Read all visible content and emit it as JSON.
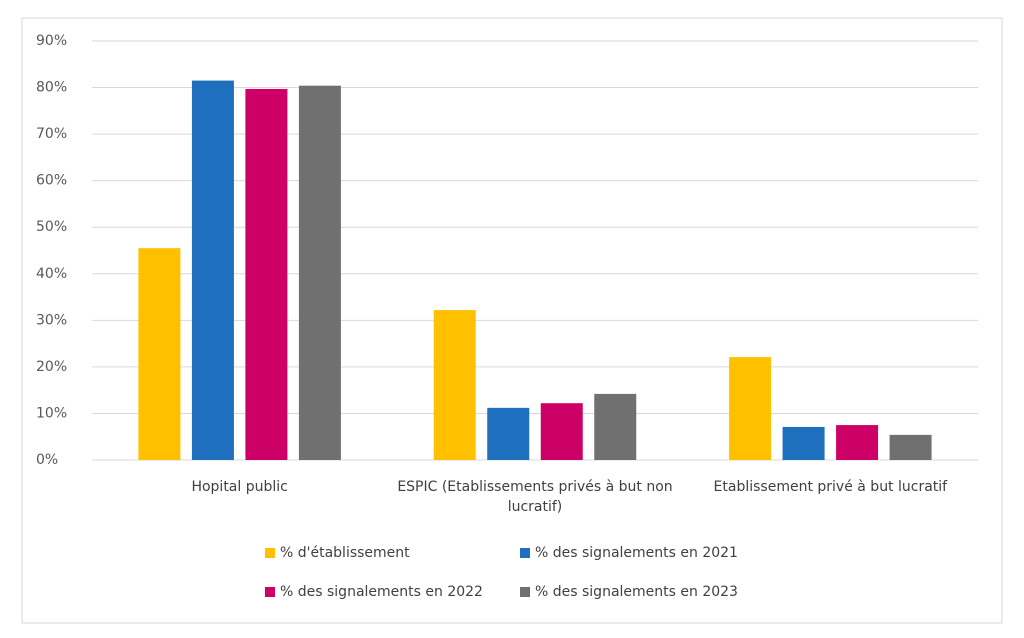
{
  "chart_data": {
    "type": "bar",
    "categories": [
      "Hopital public",
      "ESPIC (Etablissements privés à but non lucratif)",
      "Etablissement privé à but lucratif"
    ],
    "series": [
      {
        "name": "% d'établissement",
        "color": "#ffc000",
        "values": [
          45.5,
          32.2,
          22.1
        ]
      },
      {
        "name": "% des signalements en 2021",
        "color": "#1f6fbf",
        "values": [
          81.5,
          11.2,
          7.1
        ]
      },
      {
        "name": "% des signalements en 2022",
        "color": "#cc0066",
        "values": [
          79.7,
          12.2,
          7.5
        ]
      },
      {
        "name": "% des signalements en 2023",
        "color": "#707070",
        "values": [
          80.4,
          14.2,
          5.4
        ]
      }
    ],
    "ylim": [
      0,
      90
    ],
    "yticks": [
      {
        "value": 0,
        "label": "0%"
      },
      {
        "value": 10,
        "label": "10%"
      },
      {
        "value": 20,
        "label": "20%"
      },
      {
        "value": 30,
        "label": "30%"
      },
      {
        "value": 40,
        "label": "40%"
      },
      {
        "value": 50,
        "label": "50%"
      },
      {
        "value": 60,
        "label": "60%"
      },
      {
        "value": 70,
        "label": "70%"
      },
      {
        "value": 80,
        "label": "80%"
      },
      {
        "value": 90,
        "label": "90%"
      }
    ],
    "grid": true,
    "legend": "bottom"
  }
}
